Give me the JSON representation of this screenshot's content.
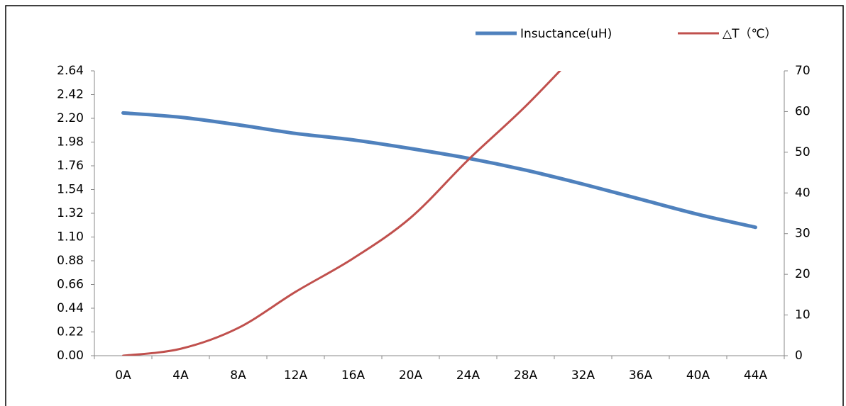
{
  "chart_data": {
    "type": "line",
    "categories": [
      "0A",
      "4A",
      "8A",
      "12A",
      "16A",
      "20A",
      "24A",
      "28A",
      "32A",
      "36A",
      "40A",
      "44A"
    ],
    "series": [
      {
        "name": "Insuctance(uH)",
        "color": "#4f81bd",
        "values": [
          2.25,
          2.21,
          2.14,
          2.06,
          2.0,
          1.92,
          1.83,
          1.72,
          1.59,
          1.45,
          1.31,
          1.19
        ]
      },
      {
        "name": "△T（℃）",
        "color": "#c0504d",
        "axis": "y2",
        "values": [
          0,
          1.7,
          6.8,
          15.7,
          23.9,
          33.9,
          48.1,
          61.3,
          76,
          null,
          null,
          null
        ]
      }
    ],
    "ylim": [
      0,
      2.64
    ],
    "yticks": [
      {
        "value": 0,
        "label": "0.00"
      },
      0.22,
      0.44,
      0.66,
      0.88,
      {
        "value": 1.1,
        "label": "1.10"
      },
      1.32,
      1.54,
      1.76,
      1.98,
      {
        "value": 2.2,
        "label": "2.20"
      },
      2.42,
      2.64
    ],
    "y2lim": [
      0,
      70
    ],
    "y2ticks": [
      0,
      10,
      20,
      30,
      40,
      50,
      60,
      70
    ],
    "grid": false,
    "legend": "top-right"
  }
}
